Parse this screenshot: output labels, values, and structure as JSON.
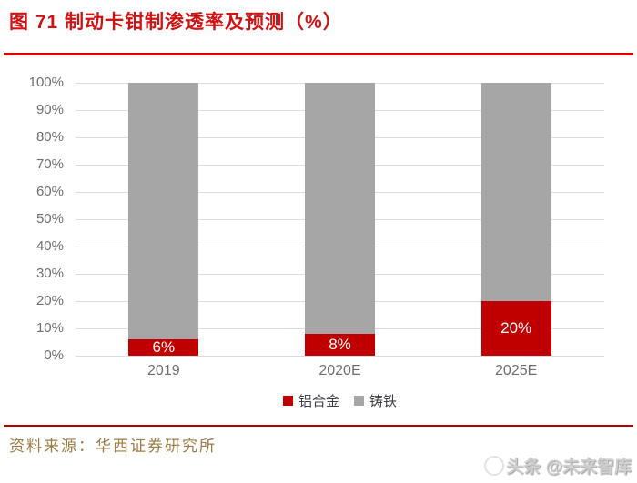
{
  "figure": {
    "title": "图 71 制动卡钳制渗透率及预测（%）",
    "source": "资料来源：华西证券研究所",
    "watermark": "头条 @未来智库"
  },
  "colors": {
    "title_red": "#d01212",
    "top_divider": "#e00000",
    "bottom_divider": "#b40000",
    "bar_red": "#c00000",
    "bar_gray": "#a6a6a6",
    "gridline": "#dcdcdc",
    "axis_text": "#6e6e6e",
    "legend_text": "#3f3f46",
    "source_text": "#9c7d42",
    "watermark_text": "#cfcfcf",
    "label_white": "#ffffff"
  },
  "chart_data": {
    "type": "bar",
    "stacked": true,
    "title": "制动卡钳制渗透率及预测（%）",
    "categories": [
      "2019",
      "2020E",
      "2025E"
    ],
    "series": [
      {
        "name": "铝合金",
        "color": "#c00000",
        "values": [
          6,
          8,
          20
        ],
        "data_labels": [
          "6%",
          "8%",
          "20%"
        ]
      },
      {
        "name": "铸铁",
        "color": "#a6a6a6",
        "values": [
          94,
          92,
          80
        ],
        "data_labels": [
          "",
          "",
          ""
        ]
      }
    ],
    "ylim": [
      0,
      100
    ],
    "yticks": [
      0,
      10,
      20,
      30,
      40,
      50,
      60,
      70,
      80,
      90,
      100
    ],
    "ytick_suffix": "%",
    "grid": true,
    "legend_position": "bottom"
  }
}
